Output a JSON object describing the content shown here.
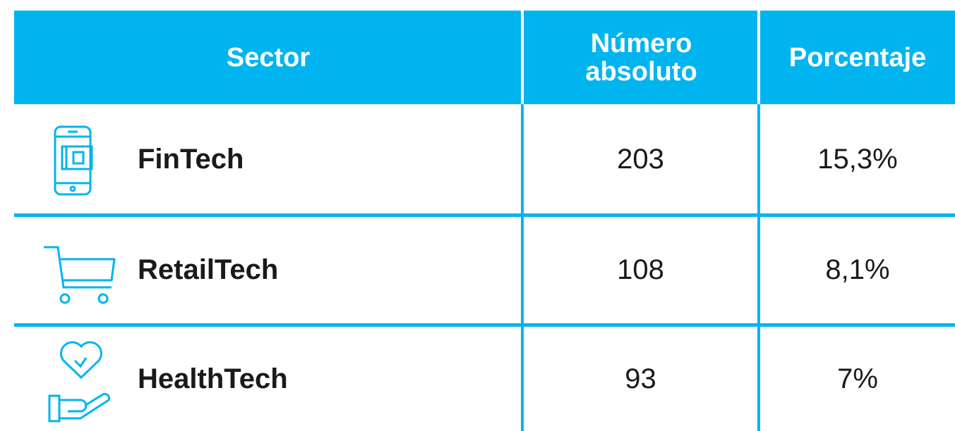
{
  "table": {
    "header": [
      "Sector",
      "Número absoluto",
      "Porcentaje"
    ],
    "rows": [
      [
        "FinTech",
        "203",
        "15,3%"
      ],
      [
        "RetailTech",
        "108",
        "8,1%"
      ],
      [
        "HealthTech",
        "93",
        "7%"
      ]
    ]
  }
}
